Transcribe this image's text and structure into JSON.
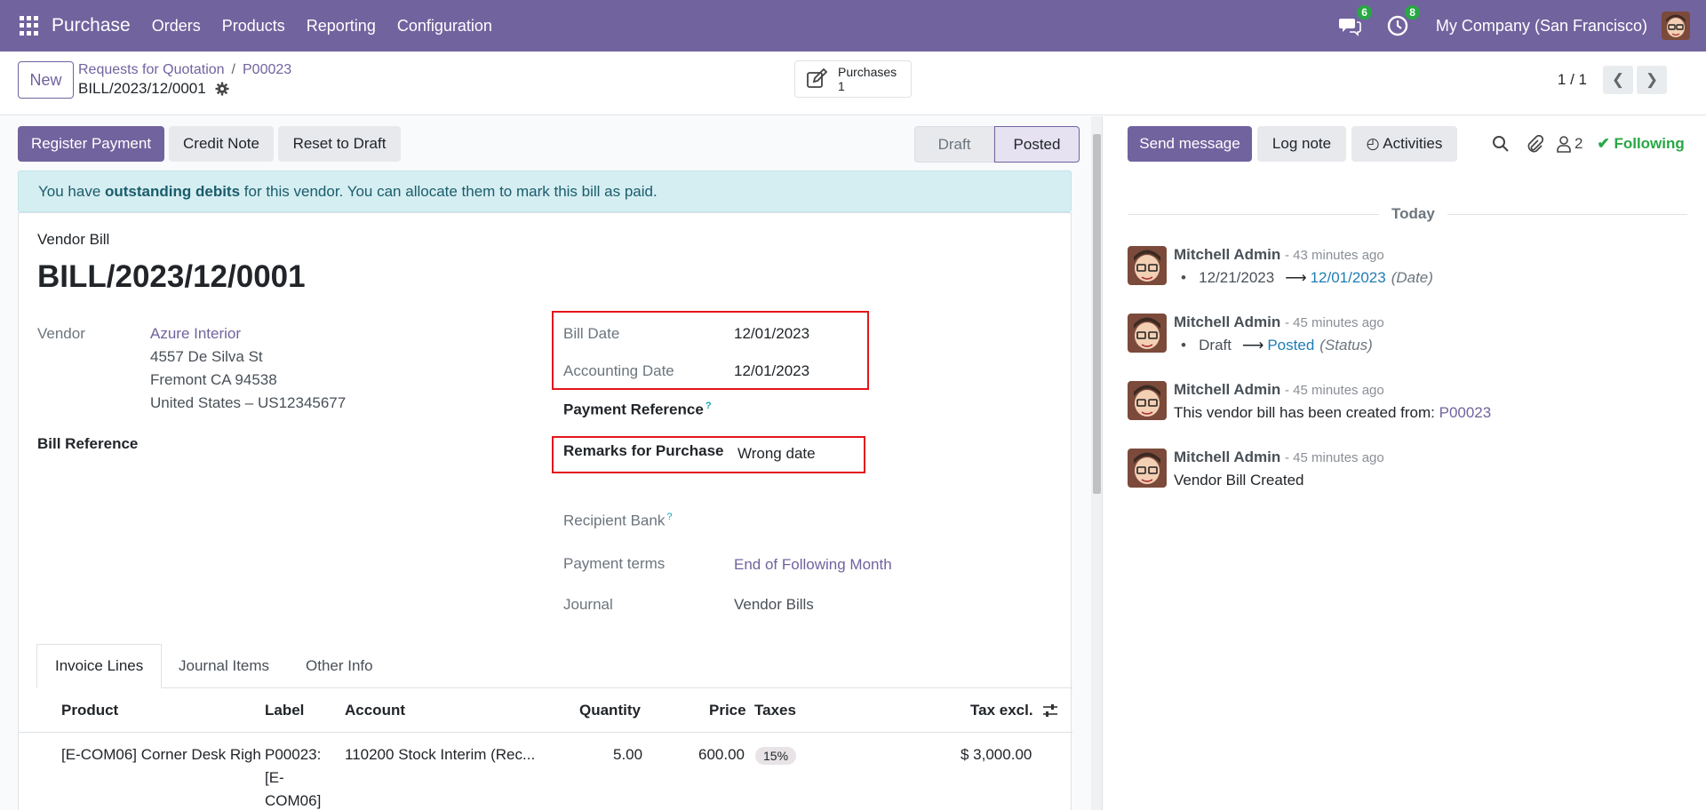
{
  "navbar": {
    "app_name": "Purchase",
    "menu": [
      "Orders",
      "Products",
      "Reporting",
      "Configuration"
    ],
    "messages_badge": "6",
    "activities_badge": "8",
    "company": "My Company (San Francisco)"
  },
  "control": {
    "new_label": "New",
    "breadcrumb_parent": "Requests for Quotation",
    "breadcrumb_sep": "/",
    "breadcrumb_current": "P00023",
    "record_name": "BILL/2023/12/0001",
    "smart_button_label": "Purchases",
    "smart_button_count": "1",
    "pager": "1 / 1"
  },
  "actions": {
    "register_payment": "Register Payment",
    "credit_note": "Credit Note",
    "reset_to_draft": "Reset to Draft"
  },
  "status": {
    "draft": "Draft",
    "posted": "Posted"
  },
  "alert": {
    "prefix": "You have ",
    "bold": "outstanding debits",
    "suffix": " for this vendor. You can allocate them to mark this bill as paid."
  },
  "form": {
    "type_label": "Vendor Bill",
    "title": "BILL/2023/12/0001",
    "vendor_label": "Vendor",
    "vendor_name": "Azure Interior",
    "vendor_address1": "4557 De Silva St",
    "vendor_address2": "Fremont CA 94538",
    "vendor_address3": "United States – US12345677",
    "bill_reference_label": "Bill Reference",
    "bill_date_label": "Bill Date",
    "bill_date": "12/01/2023",
    "accounting_date_label": "Accounting Date",
    "accounting_date": "12/01/2023",
    "payment_reference_label": "Payment Reference",
    "remarks_label": "Remarks for Purchase",
    "remarks_value": "Wrong date",
    "recipient_bank_label": "Recipient Bank",
    "payment_terms_label": "Payment terms",
    "payment_terms": "End of Following Month",
    "journal_label": "Journal",
    "journal": "Vendor Bills",
    "help_mark": "?"
  },
  "tabs": [
    "Invoice Lines",
    "Journal Items",
    "Other Info"
  ],
  "table": {
    "headers": [
      "Product",
      "Label",
      "Account",
      "Quantity",
      "Price",
      "Taxes",
      "Tax excl."
    ],
    "rows": [
      {
        "product": "[E-COM06] Corner Desk Righ",
        "label_line1": "P00023:",
        "label_line2": "[E-",
        "label_line3": "COM06]",
        "account": "110200 Stock Interim (Rec...",
        "quantity": "5.00",
        "price": "600.00",
        "tax": "15%",
        "subtotal": "$ 3,000.00"
      }
    ]
  },
  "chatter": {
    "send_message": "Send message",
    "log_note": "Log note",
    "activities": "Activities",
    "followers_count": "2",
    "following": "Following",
    "today": "Today",
    "messages": [
      {
        "author": "Mitchell Admin",
        "time": "- 43 minutes ago",
        "old": "12/21/2023",
        "new": "12/01/2023",
        "field": "(Date)"
      },
      {
        "author": "Mitchell Admin",
        "time": "- 45 minutes ago",
        "old": "Draft",
        "new": "Posted",
        "field": "(Status)"
      },
      {
        "author": "Mitchell Admin",
        "time": "- 45 minutes ago",
        "body": "This vendor bill has been created from: ",
        "link": "P00023"
      },
      {
        "author": "Mitchell Admin",
        "time": "- 45 minutes ago",
        "body": "Vendor Bill Created"
      }
    ]
  },
  "colors": {
    "brand": "#71639e",
    "alert_bg": "#d5eef2",
    "highlight_box": "#e3151a",
    "following": "#28a745"
  }
}
